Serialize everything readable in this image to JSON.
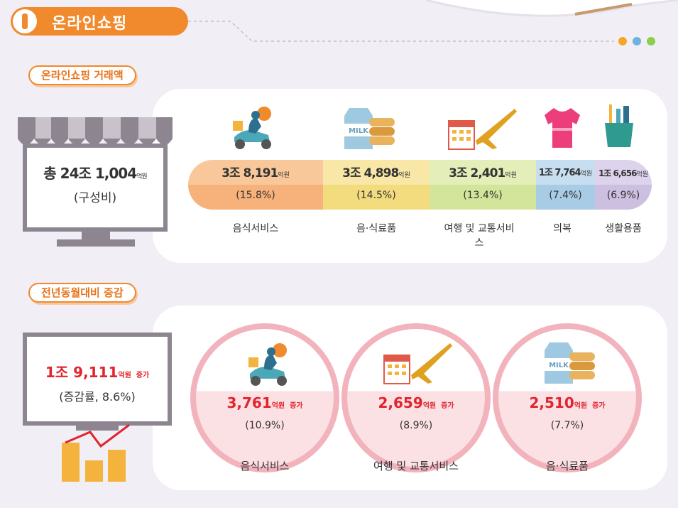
{
  "header": {
    "title": "온라인쇼핑"
  },
  "section1": {
    "label": "온라인쇼핑 거래액",
    "total": {
      "prefix": "총",
      "amount": "24조 1,004",
      "unit": "억원",
      "note": "(구성비)"
    },
    "items": [
      {
        "amount": "3조 8,191",
        "unit": "억원",
        "percent": "(15.8%)",
        "name": "음식서비스"
      },
      {
        "amount": "3조 4,898",
        "unit": "억원",
        "percent": "(14.5%)",
        "name": "음·식료품",
        "icon_text": "MILK"
      },
      {
        "amount": "3조 2,401",
        "unit": "억원",
        "percent": "(13.4%)",
        "name": "여행 및 교통서비스"
      },
      {
        "amount": "1조 7,764",
        "unit": "억원",
        "percent": "(7.4%)",
        "name": "의복"
      },
      {
        "amount": "1조 6,656",
        "unit": "억원",
        "percent": "(6.9%)",
        "name": "생활용품"
      }
    ]
  },
  "section2": {
    "label": "전년동월대비 증감",
    "total": {
      "amount": "1조 9,111",
      "unit": "억원",
      "suffix": "증가",
      "rate": "(증감률, 8.6%)"
    },
    "items": [
      {
        "amount": "3,761",
        "unit": "억원",
        "suffix": "증가",
        "percent": "(10.9%)",
        "name": "음식서비스"
      },
      {
        "amount": "2,659",
        "unit": "억원",
        "suffix": "증가",
        "percent": "(8.9%)",
        "name": "여행 및 교통서비스"
      },
      {
        "amount": "2,510",
        "unit": "억원",
        "suffix": "증가",
        "percent": "(7.7%)",
        "name": "음·식료품",
        "icon_text": "MILK"
      }
    ]
  }
}
